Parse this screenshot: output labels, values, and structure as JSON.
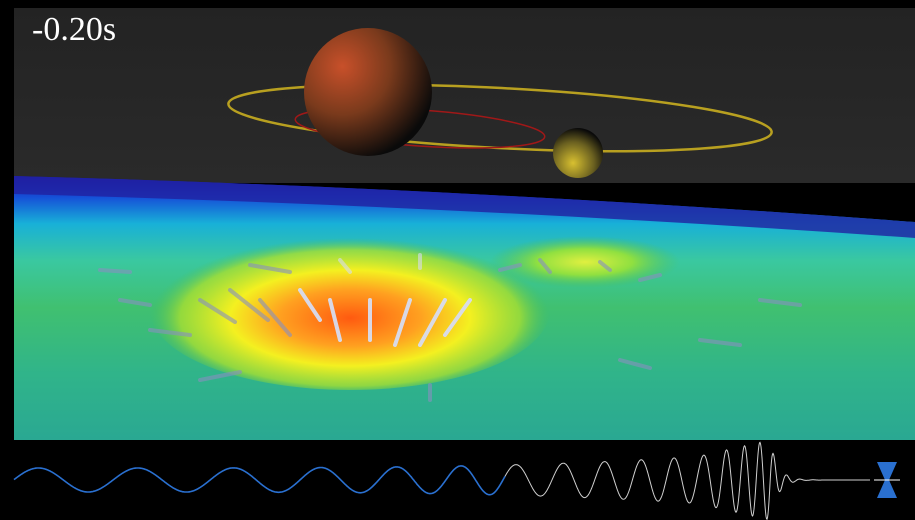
{
  "overlay": {
    "time_label": "-0.20s"
  }
}
